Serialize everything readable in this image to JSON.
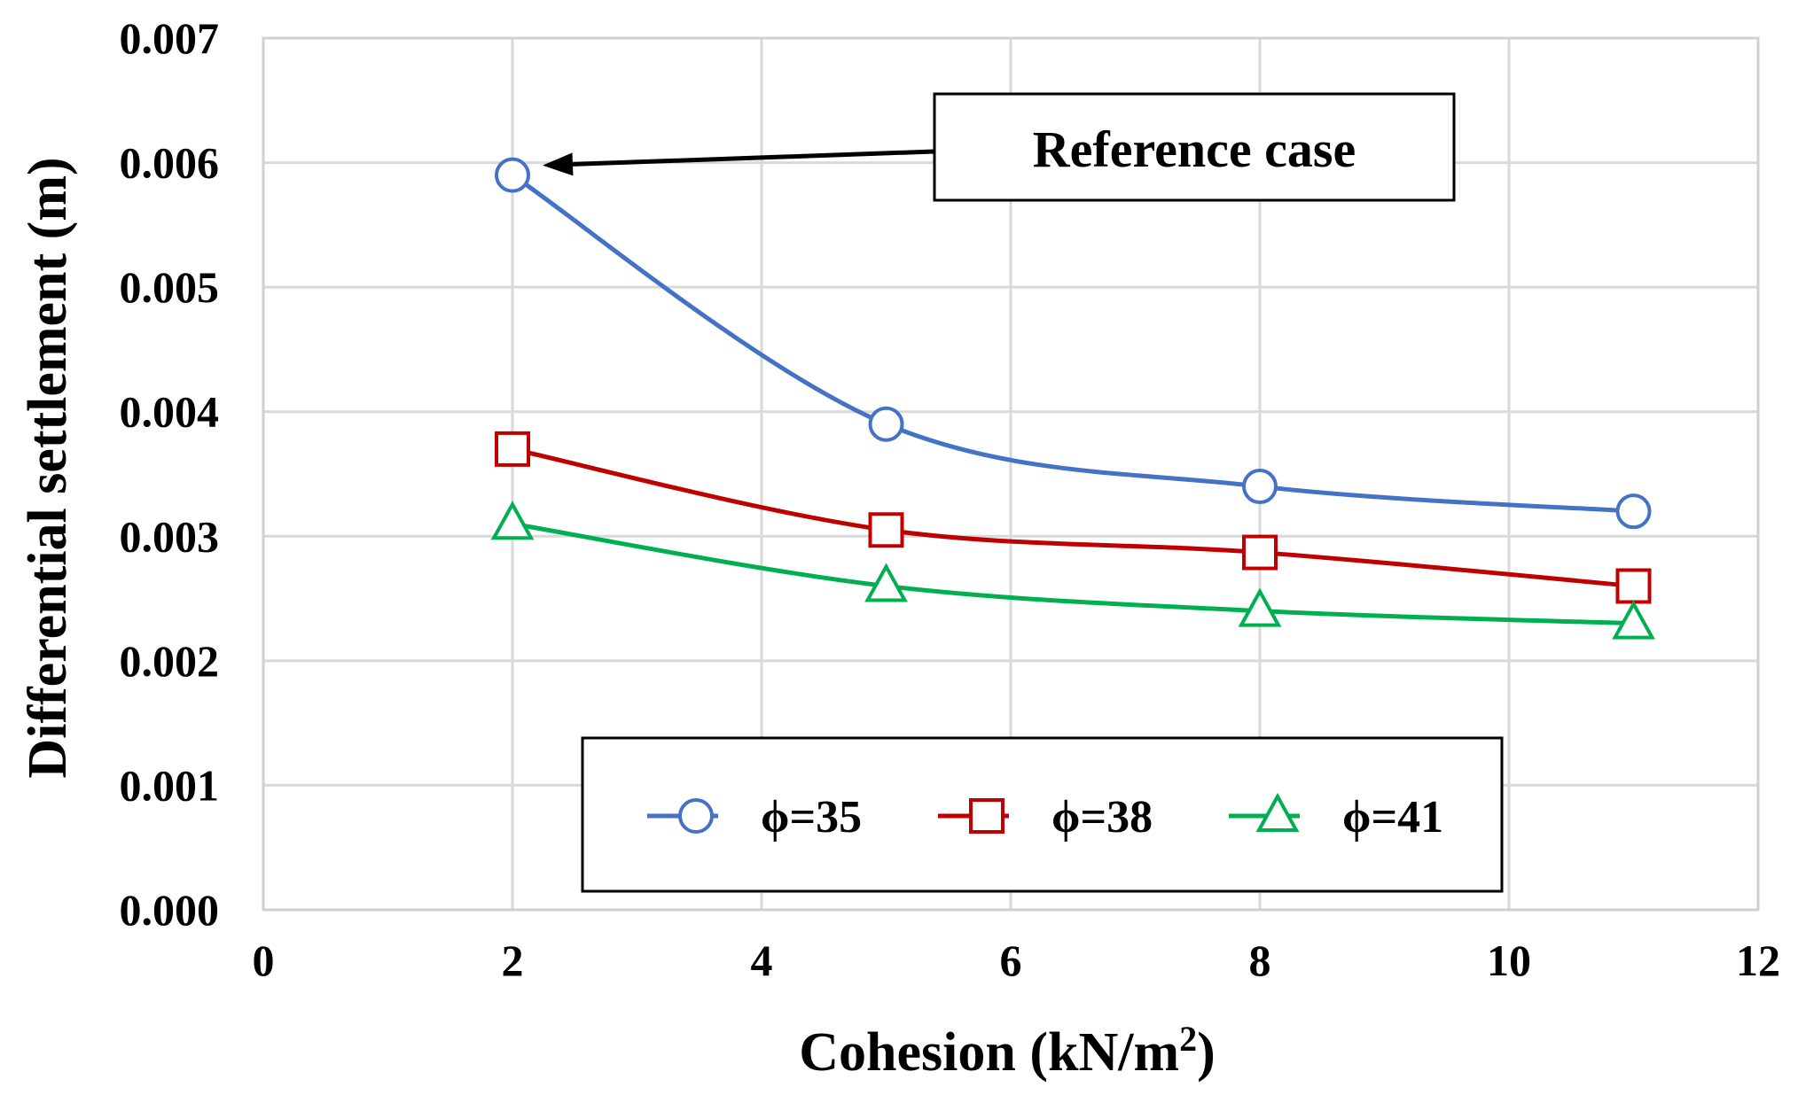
{
  "chart_data": {
    "type": "line",
    "title": "",
    "xlabel": "Cohesion (kN/m",
    "xlabel_superscript": "2",
    "xlabel_close": ")",
    "ylabel": "Differential settlement (m)",
    "xlim": [
      0,
      12
    ],
    "ylim": [
      0,
      0.007
    ],
    "x_ticks": [
      0,
      2,
      4,
      6,
      8,
      10,
      12
    ],
    "x_tick_labels": [
      "0",
      "2",
      "4",
      "6",
      "8",
      "10",
      "12"
    ],
    "y_ticks": [
      0,
      0.001,
      0.002,
      0.003,
      0.004,
      0.005,
      0.006,
      0.007
    ],
    "y_tick_labels": [
      "0.000",
      "0.001",
      "0.002",
      "0.003",
      "0.004",
      "0.005",
      "0.006",
      "0.007"
    ],
    "grid": true,
    "smooth": true,
    "x": [
      2,
      5,
      8,
      11
    ],
    "series": [
      {
        "name": "ϕ=35",
        "marker": "circle",
        "color": "#4472c4",
        "values": [
          0.0059,
          0.0039,
          0.0034,
          0.0032
        ]
      },
      {
        "name": "ϕ=38",
        "marker": "square",
        "color": "#c00000",
        "values": [
          0.0037,
          0.00305,
          0.00287,
          0.0026
        ]
      },
      {
        "name": "ϕ=41",
        "marker": "triangle",
        "color": "#00b050",
        "values": [
          0.0031,
          0.0026,
          0.0024,
          0.0023
        ]
      }
    ],
    "legend_position": "bottom-center inside plot",
    "annotations": [
      {
        "text": "Reference case",
        "target_series": "ϕ=35",
        "target_x": 2,
        "target_y": 0.0059
      }
    ]
  }
}
